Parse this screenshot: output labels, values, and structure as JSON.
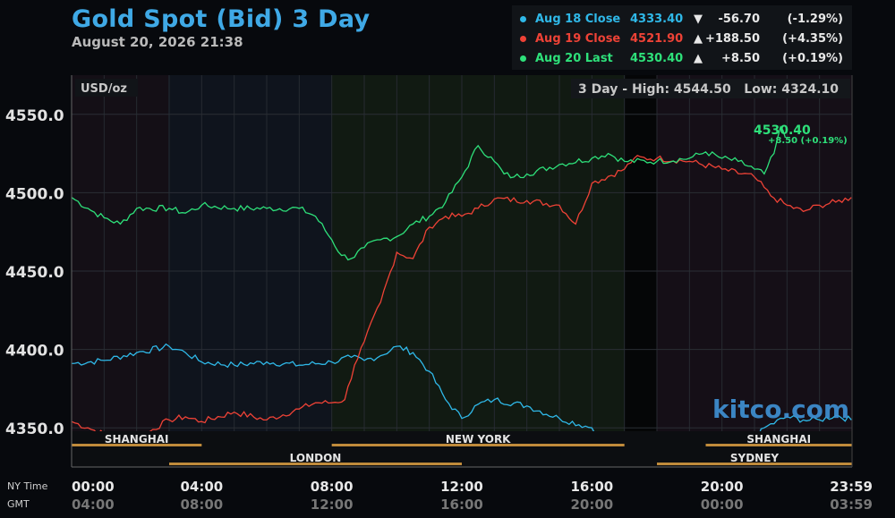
{
  "header": {
    "title": "Gold Spot (Bid) 3 Day",
    "date": "August 20, 2026 21:38"
  },
  "legend": [
    {
      "label": "Aug 18 Close",
      "value": "4333.40",
      "arrow": "▼",
      "change": "-56.70",
      "pct": "(-1.29%)",
      "color": "#2fb8e8"
    },
    {
      "label": "Aug 19 Close",
      "value": "4521.90",
      "arrow": "▲",
      "change": "+188.50",
      "pct": "(+4.35%)",
      "color": "#ee4236"
    },
    {
      "label": "Aug 20 Last",
      "value": "4530.40",
      "arrow": "▲",
      "change": "+8.50",
      "pct": "(+0.19%)",
      "color": "#2ee07a"
    }
  ],
  "chart_data": {
    "type": "line",
    "unit_label": "USD/oz",
    "range_box": "3 Day - High: 4544.50   Low: 4324.10",
    "watermark": "kitco.com",
    "last_label": "4530.40",
    "last_change": "+8.50 (+0.19%)",
    "ylim": [
      4325,
      4575
    ],
    "y_ticks": [
      4350,
      4400,
      4450,
      4500,
      4550
    ],
    "y_tick_labels": [
      "4350.0",
      "4400.0",
      "4450.0",
      "4500.0",
      "4550.0"
    ],
    "x_axis_rows": [
      {
        "label": "NY Time",
        "ticks": [
          "00:00",
          "04:00",
          "08:00",
          "12:00",
          "16:00",
          "20:00",
          "23:59"
        ]
      },
      {
        "label": "GMT",
        "ticks": [
          "04:00",
          "08:00",
          "12:00",
          "16:00",
          "20:00",
          "00:00",
          "03:59"
        ]
      }
    ],
    "x_tick_hours": [
      0,
      4,
      8,
      12,
      16,
      20,
      23.983
    ],
    "sessions": [
      {
        "name": "SHANGHAI",
        "row": 0,
        "start": 0,
        "end": 4
      },
      {
        "name": "NEW YORK",
        "row": 0,
        "start": 8,
        "end": 17
      },
      {
        "name": "SHANGHAI",
        "row": 0,
        "start": 19.5,
        "end": 24
      },
      {
        "name": "LONDON",
        "row": 1,
        "start": 3,
        "end": 12
      },
      {
        "name": "SYDNEY",
        "row": 1,
        "start": 18,
        "end": 24
      }
    ],
    "series": [
      {
        "name": "Aug 18",
        "color": "#2fb8e8",
        "points": [
          [
            0,
            4391
          ],
          [
            1,
            4393
          ],
          [
            2,
            4398
          ],
          [
            3,
            4402
          ],
          [
            3.5,
            4398
          ],
          [
            4,
            4392
          ],
          [
            5,
            4390
          ],
          [
            6,
            4392
          ],
          [
            7,
            4390
          ],
          [
            8,
            4392
          ],
          [
            8.6,
            4395
          ],
          [
            9,
            4393
          ],
          [
            9.5,
            4396
          ],
          [
            10,
            4402
          ],
          [
            10.5,
            4398
          ],
          [
            11,
            4386
          ],
          [
            11.5,
            4368
          ],
          [
            12,
            4356
          ],
          [
            12.5,
            4365
          ],
          [
            13,
            4368
          ],
          [
            14,
            4364
          ],
          [
            15,
            4356
          ],
          [
            16,
            4350
          ],
          [
            16.5,
            4340
          ],
          [
            17,
            4333
          ],
          [
            18,
            4333
          ],
          [
            18.5,
            4339
          ],
          [
            19,
            4333
          ],
          [
            20,
            4333
          ],
          [
            20.8,
            4337
          ],
          [
            21.3,
            4350
          ],
          [
            22,
            4357
          ],
          [
            22.5,
            4355
          ],
          [
            23,
            4355
          ],
          [
            23.5,
            4358
          ],
          [
            23.98,
            4355
          ]
        ]
      },
      {
        "name": "Aug 19",
        "color": "#ee4236",
        "points": [
          [
            0,
            4354
          ],
          [
            0.5,
            4350
          ],
          [
            1,
            4346
          ],
          [
            1.5,
            4340
          ],
          [
            2,
            4342
          ],
          [
            2.5,
            4349
          ],
          [
            3,
            4355
          ],
          [
            3.5,
            4357
          ],
          [
            4,
            4354
          ],
          [
            5,
            4360
          ],
          [
            6,
            4355
          ],
          [
            7,
            4362
          ],
          [
            7.5,
            4366
          ],
          [
            8,
            4366
          ],
          [
            8.4,
            4368
          ],
          [
            8.7,
            4390
          ],
          [
            9,
            4405
          ],
          [
            9.5,
            4430
          ],
          [
            10,
            4462
          ],
          [
            10.5,
            4458
          ],
          [
            11,
            4478
          ],
          [
            11.5,
            4485
          ],
          [
            12,
            4485
          ],
          [
            12.5,
            4490
          ],
          [
            13,
            4496
          ],
          [
            14,
            4495
          ],
          [
            15,
            4492
          ],
          [
            15.5,
            4480
          ],
          [
            16,
            4506
          ],
          [
            17,
            4515
          ],
          [
            17.3,
            4522
          ],
          [
            18,
            4522
          ],
          [
            19,
            4520
          ],
          [
            20,
            4515
          ],
          [
            21,
            4510
          ],
          [
            21.5,
            4498
          ],
          [
            22,
            4492
          ],
          [
            22.5,
            4488
          ],
          [
            23,
            4492
          ],
          [
            23.5,
            4494
          ],
          [
            23.98,
            4497
          ]
        ]
      },
      {
        "name": "Aug 20",
        "color": "#2ee07a",
        "points": [
          [
            0,
            4497
          ],
          [
            0.5,
            4490
          ],
          [
            1,
            4484
          ],
          [
            1.5,
            4480
          ],
          [
            2,
            4490
          ],
          [
            3,
            4490
          ],
          [
            3.5,
            4487
          ],
          [
            4,
            4492
          ],
          [
            5,
            4490
          ],
          [
            6,
            4490
          ],
          [
            7,
            4490
          ],
          [
            7.5,
            4485
          ],
          [
            8,
            4470
          ],
          [
            8.3,
            4460
          ],
          [
            8.6,
            4458
          ],
          [
            9,
            4465
          ],
          [
            9.5,
            4470
          ],
          [
            10,
            4472
          ],
          [
            10.5,
            4480
          ],
          [
            11,
            4485
          ],
          [
            11.5,
            4494
          ],
          [
            12,
            4510
          ],
          [
            12.5,
            4530
          ],
          [
            13,
            4520
          ],
          [
            13.3,
            4512
          ],
          [
            13.6,
            4510
          ],
          [
            14,
            4512
          ],
          [
            15,
            4518
          ],
          [
            16,
            4522
          ],
          [
            16.5,
            4525
          ],
          [
            17,
            4520
          ],
          [
            18,
            4520
          ],
          [
            19,
            4522
          ],
          [
            19.5,
            4526
          ],
          [
            20,
            4522
          ],
          [
            20.5,
            4520
          ],
          [
            21,
            4515
          ],
          [
            21.3,
            4512
          ],
          [
            21.6,
            4525
          ],
          [
            21.8,
            4542
          ],
          [
            21.95,
            4535
          ]
        ]
      }
    ]
  }
}
